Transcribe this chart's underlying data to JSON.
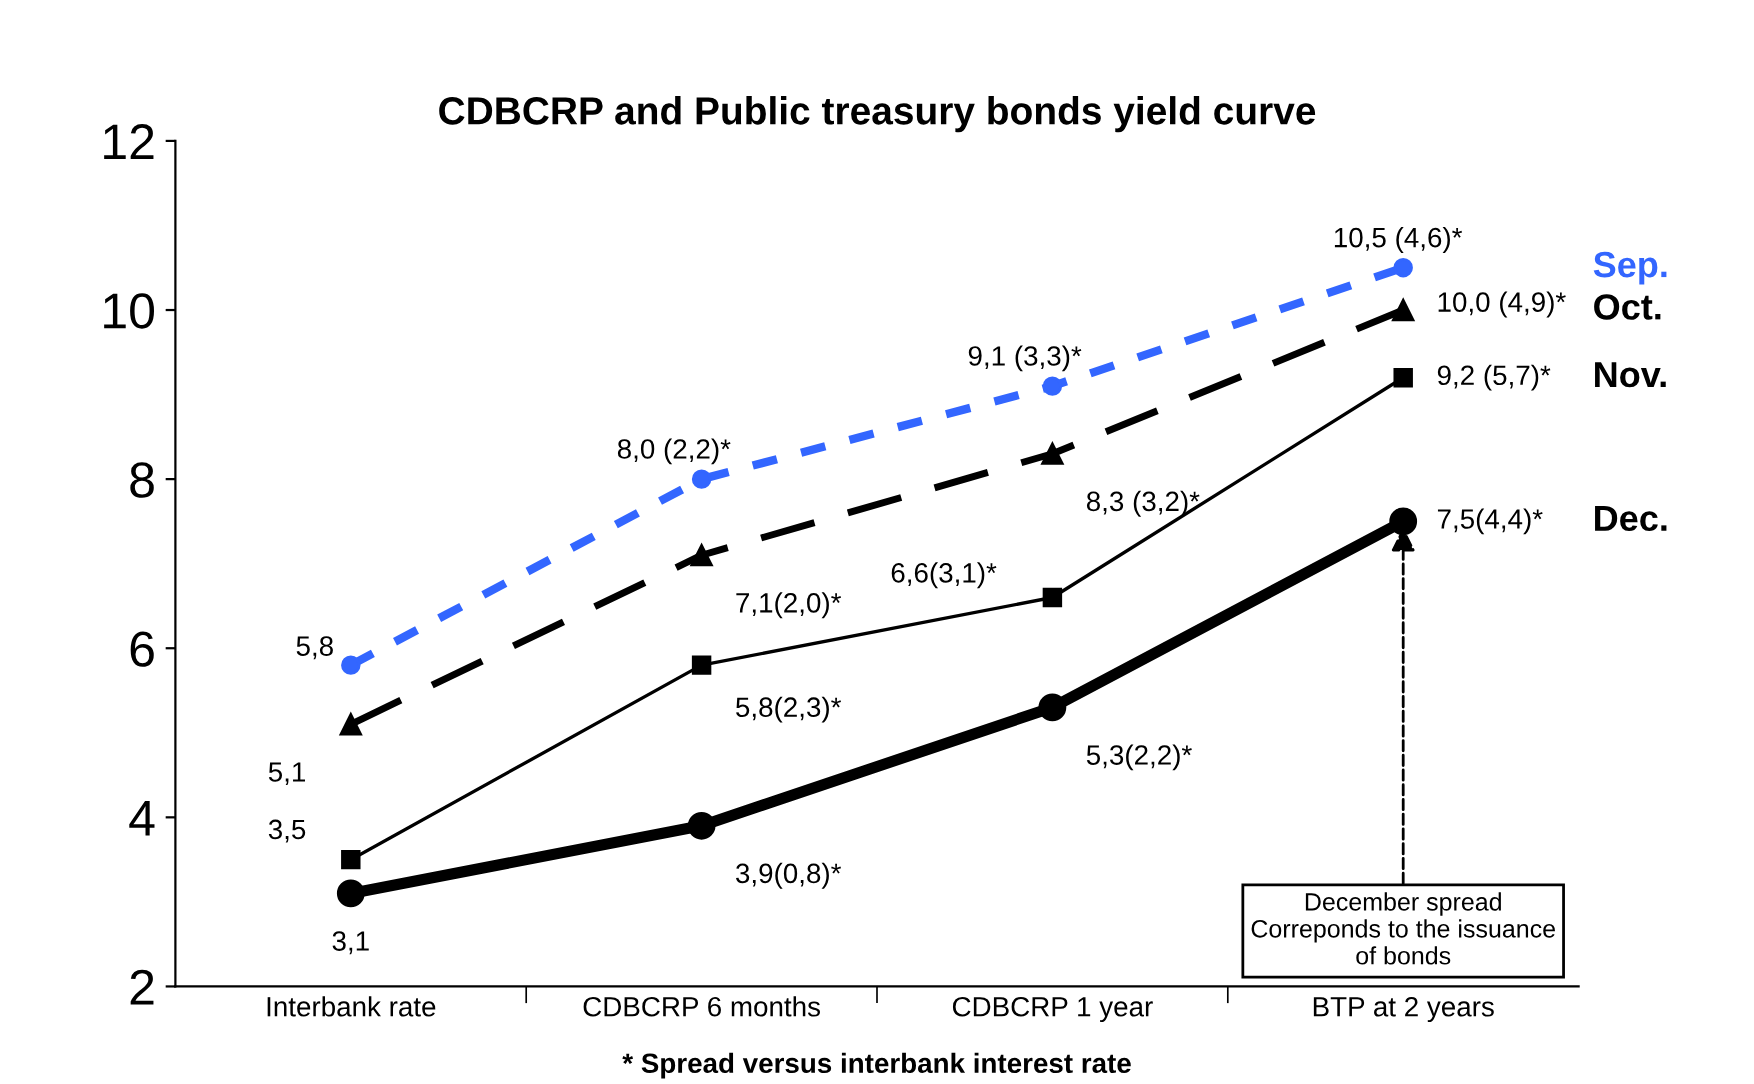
{
  "chart_data": {
    "type": "line",
    "title": "CDBCRP and Public treasury bonds yield curve",
    "categories": [
      "Interbank rate",
      "CDBCRP 6 months",
      "CDBCRP 1 year",
      "BTP at 2 years"
    ],
    "series": [
      {
        "name": "Sep.",
        "color": "#3366ff",
        "values": [
          5.8,
          8.0,
          9.1,
          10.5
        ],
        "line_style": "dotted",
        "marker": "circle",
        "value_labels": [
          "5,8",
          "8,0 (2,2)*",
          "9,1 (3,3)*",
          "10,5 (4,6)*"
        ]
      },
      {
        "name": "Oct.",
        "color": "#000000",
        "values": [
          5.1,
          7.1,
          8.3,
          10.0
        ],
        "line_style": "dashed",
        "marker": "triangle",
        "value_labels": [
          "5,1",
          "7,1(2,0)*",
          "8,3 (3,2)*",
          "10,0 (4,9)*"
        ]
      },
      {
        "name": "Nov.",
        "color": "#000000",
        "values": [
          3.5,
          5.8,
          6.6,
          9.2
        ],
        "line_style": "solid",
        "marker": "square",
        "value_labels": [
          "3,5",
          "5,8(2,3)*",
          "6,6(3,1)*",
          "9,2 (5,7)*"
        ]
      },
      {
        "name": "Dec.",
        "color": "#000000",
        "values": [
          3.1,
          3.9,
          5.3,
          7.5
        ],
        "line_style": "solid",
        "marker": "circle",
        "value_labels": [
          "3,1",
          "3,9(0,8)*",
          "5,3(2,2)*",
          "7,5(4,4)*"
        ]
      }
    ],
    "ylim": [
      2,
      12
    ],
    "yticks": [
      2,
      4,
      6,
      8,
      10,
      12
    ],
    "grid": false,
    "legend": false,
    "annotations": [
      {
        "text": "December spread\nCorreponds to the issuance\nof bonds",
        "x": "BTP at 2 years",
        "y": 7.5
      },
      "* Spread versus interbank interest rate"
    ]
  }
}
